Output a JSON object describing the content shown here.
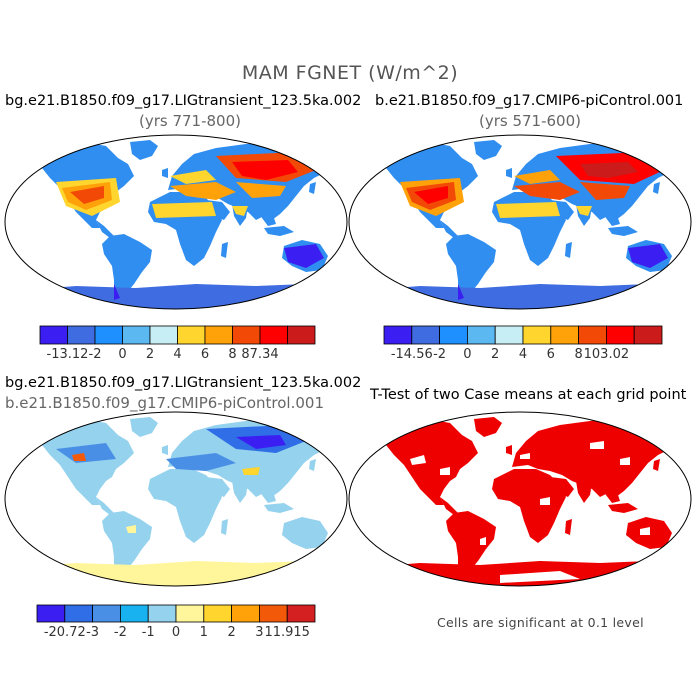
{
  "figure": {
    "title": "MAM FGNET (W/m^2)",
    "note": "Cells are significant at 0.1 level"
  },
  "panels": [
    {
      "id": "lig",
      "title": "bg.e21.B1850.f09_g17.LIGtransient_123.5ka.002",
      "subtitle": "(yrs 771-800)",
      "colorbar": {
        "labels": [
          "-13.12",
          "-2",
          "0",
          "2",
          "4",
          "6",
          "8",
          "87.34"
        ],
        "colors": [
          "#3b1ff2",
          "#3f6ce0",
          "#1e90ff",
          "#5cb8f0",
          "#c8eef5",
          "#ffd52e",
          "#ffa20a",
          "#f24a06",
          "#ff0000",
          "#cc1b1b"
        ]
      }
    },
    {
      "id": "pi",
      "title": "b.e21.B1850.f09_g17.CMIP6-piControl.001",
      "subtitle": "(yrs 571-600)",
      "colorbar": {
        "labels": [
          "-14.56",
          "-2",
          "0",
          "2",
          "4",
          "6",
          "8",
          "103.02"
        ],
        "colors": [
          "#3b1ff2",
          "#3f6ce0",
          "#1e90ff",
          "#5cb8f0",
          "#c8eef5",
          "#ffd52e",
          "#ffa20a",
          "#f24a06",
          "#ff0000",
          "#cc1b1b"
        ]
      }
    },
    {
      "id": "diff",
      "title": "bg.e21.B1850.f09_g17.LIGtransient_123.5ka.002",
      "subtitle": "b.e21.B1850.f09_g17.CMIP6-piControl.001",
      "colorbar": {
        "labels": [
          "-20.72",
          "-3",
          "-2",
          "-1",
          "0",
          "1",
          "2",
          "3",
          "11.915"
        ],
        "colors": [
          "#3b1ff2",
          "#2f6ee6",
          "#4a8fe6",
          "#19b2f0",
          "#95d2ee",
          "#fff59a",
          "#ffd52e",
          "#ffa20a",
          "#f25a0a",
          "#d42020"
        ]
      }
    },
    {
      "id": "ttest",
      "title": "T-Test of two Case means at each grid point"
    }
  ]
}
